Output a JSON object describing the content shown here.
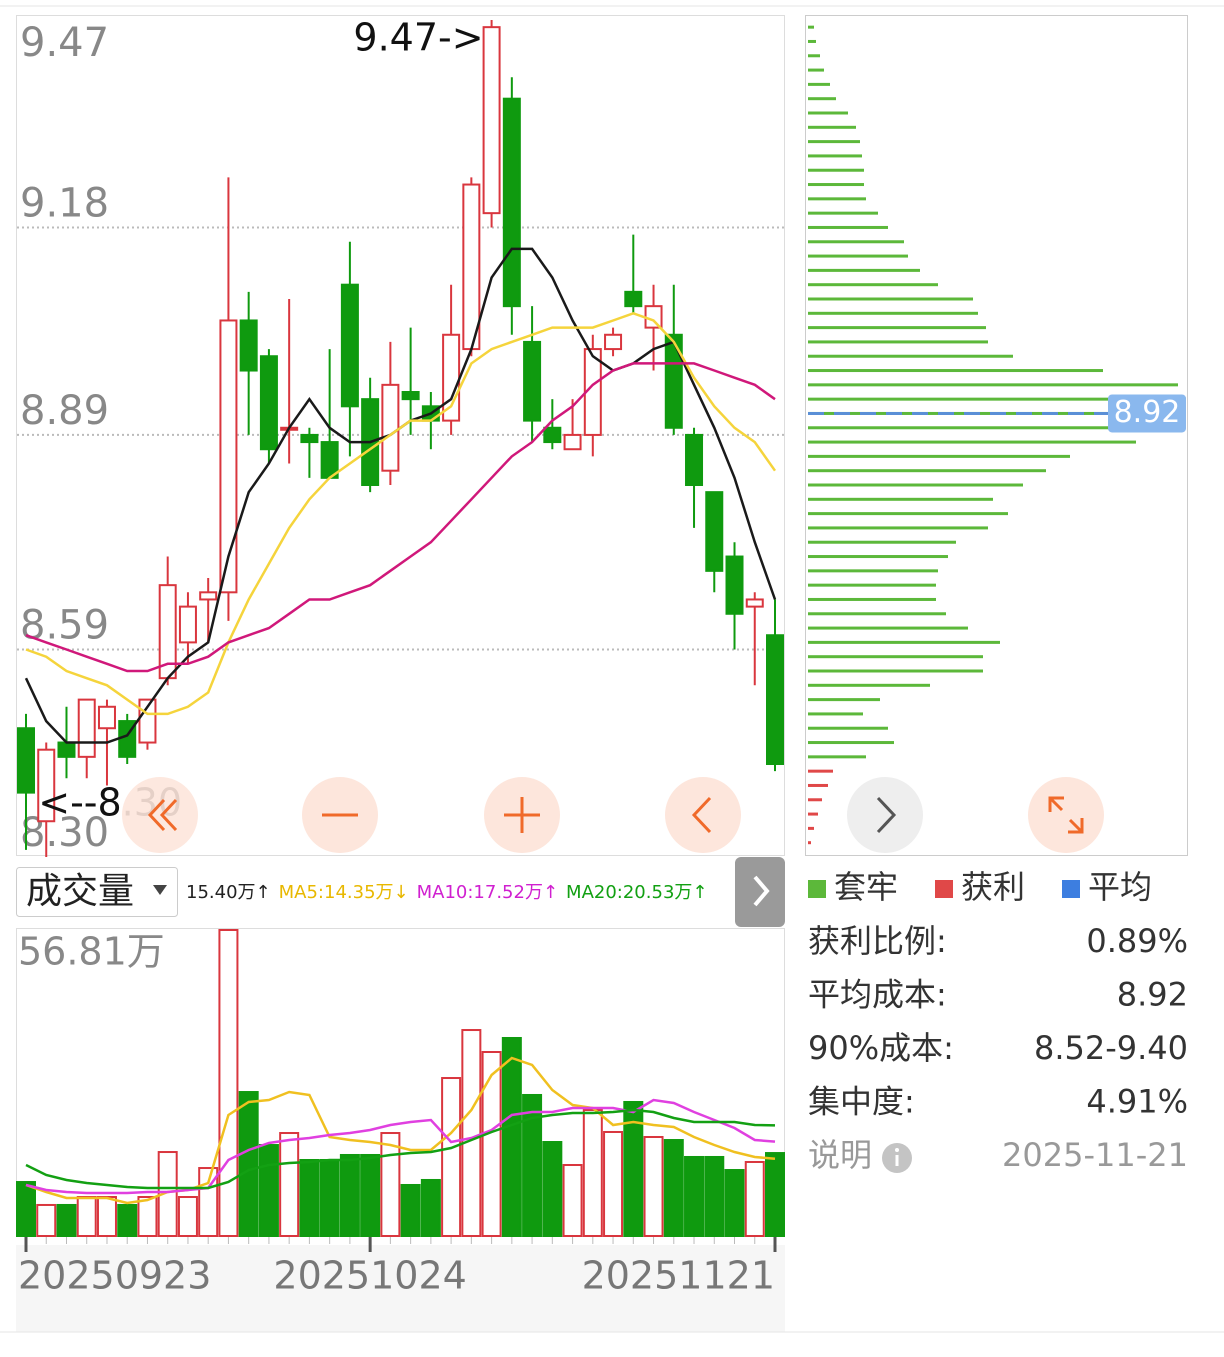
{
  "chart_data": [
    {
      "type": "candlestick",
      "categories": [
        "20250923",
        null,
        null,
        null,
        null,
        null,
        null,
        null,
        null,
        null,
        null,
        null,
        null,
        null,
        null,
        null,
        null,
        "20251024",
        null,
        null,
        null,
        null,
        null,
        null,
        null,
        null,
        null,
        null,
        null,
        null,
        null,
        null,
        null,
        null,
        null,
        null,
        null,
        "20251121"
      ],
      "open": [
        8.48,
        8.35,
        8.46,
        8.44,
        8.48,
        8.49,
        8.46,
        8.55,
        8.6,
        8.66,
        8.67,
        9.05,
        9.0,
        8.9,
        8.89,
        8.88,
        9.1,
        8.94,
        8.84,
        8.95,
        8.93,
        8.91,
        9.01,
        9.2,
        9.36,
        9.02,
        8.9,
        8.87,
        8.89,
        9.01,
        9.09,
        9.04,
        9.03,
        8.89,
        8.81,
        8.72,
        8.65,
        8.61
      ],
      "high": [
        8.5,
        8.46,
        8.51,
        8.52,
        8.52,
        8.5,
        8.52,
        8.72,
        8.67,
        8.69,
        9.25,
        9.09,
        9.01,
        9.08,
        8.9,
        9.01,
        9.16,
        8.97,
        9.02,
        9.04,
        8.95,
        9.1,
        9.25,
        9.47,
        9.39,
        9.07,
        8.94,
        8.94,
        9.03,
        9.04,
        9.17,
        9.1,
        9.1,
        8.9,
        8.81,
        8.74,
        8.67,
        8.66
      ],
      "low": [
        8.31,
        8.3,
        8.41,
        8.41,
        8.4,
        8.43,
        8.45,
        8.54,
        8.57,
        8.6,
        8.63,
        8.89,
        8.85,
        8.85,
        8.83,
        8.83,
        8.86,
        8.81,
        8.82,
        8.89,
        8.87,
        8.89,
        9.0,
        9.18,
        9.03,
        8.88,
        8.87,
        8.87,
        8.86,
        9.0,
        9.06,
        8.98,
        8.89,
        8.76,
        8.67,
        8.59,
        8.54,
        8.42
      ],
      "close": [
        8.39,
        8.45,
        8.44,
        8.52,
        8.51,
        8.44,
        8.52,
        8.68,
        8.65,
        8.67,
        9.05,
        8.98,
        8.87,
        8.9,
        8.88,
        8.83,
        8.93,
        8.82,
        8.96,
        8.94,
        8.91,
        9.03,
        9.24,
        9.46,
        9.07,
        8.91,
        8.88,
        8.89,
        9.01,
        9.03,
        9.07,
        9.07,
        8.9,
        8.82,
        8.7,
        8.64,
        8.66,
        8.43
      ],
      "up_color": "#d9363e",
      "down_color": "#0f9a0f",
      "series": [
        {
          "color": "#1a1a1a",
          "values": [
            8.55,
            8.49,
            8.46,
            8.46,
            8.46,
            8.47,
            8.51,
            8.55,
            8.58,
            8.6,
            8.72,
            8.81,
            8.85,
            8.9,
            8.94,
            8.9,
            8.88,
            8.88,
            8.89,
            8.91,
            8.92,
            8.94,
            9.01,
            9.11,
            9.15,
            9.15,
            9.11,
            9.05,
            9.0,
            8.98,
            8.99,
            9.01,
            9.02,
            8.96,
            8.9,
            8.83,
            8.74,
            8.66
          ]
        },
        {
          "color": "#f5d43c",
          "values": [
            8.59,
            8.58,
            8.56,
            8.55,
            8.54,
            8.52,
            8.5,
            8.5,
            8.51,
            8.53,
            8.6,
            8.66,
            8.71,
            8.76,
            8.8,
            8.83,
            8.85,
            8.87,
            8.89,
            8.91,
            8.91,
            8.93,
            8.99,
            9.01,
            9.02,
            9.03,
            9.04,
            9.04,
            9.04,
            9.05,
            9.06,
            9.05,
            9.02,
            8.97,
            8.93,
            8.9,
            8.88,
            8.84
          ]
        },
        {
          "color": "#d0187a",
          "values": [
            8.61,
            8.6,
            8.59,
            8.58,
            8.57,
            8.56,
            8.56,
            8.57,
            8.57,
            8.58,
            8.6,
            8.61,
            8.62,
            8.64,
            8.66,
            8.66,
            8.67,
            8.68,
            8.7,
            8.72,
            8.74,
            8.77,
            8.8,
            8.83,
            8.86,
            8.88,
            8.91,
            8.93,
            8.96,
            8.98,
            8.99,
            8.99,
            8.99,
            8.99,
            8.98,
            8.97,
            8.96,
            8.94
          ]
        }
      ],
      "ylim": [
        8.3,
        9.47
      ],
      "yticks": [
        9.47,
        9.18,
        8.89,
        8.59,
        {
          "value": 8.3,
          "label": "8.30"
        }
      ],
      "grid": true,
      "annotations": [
        "9.47->",
        "<--8.30"
      ]
    },
    {
      "type": "bar",
      "selector": "成交量",
      "header": [
        {
          "text": "15.40万↑",
          "color": "#222222"
        },
        {
          "text": "MA5:14.35万↓",
          "color": "#e8b800"
        },
        {
          "text": "MA10:17.52万↑",
          "color": "#d020d0"
        },
        {
          "text": "MA20:20.53万↑",
          "color": "#12a012"
        }
      ],
      "values": [
        10.02,
        5.76,
        5.76,
        7.24,
        7.24,
        5.76,
        7.24,
        15.59,
        7.24,
        12.62,
        56.81,
        26.73,
        16.89,
        19.12,
        14.11,
        14.11,
        15.04,
        15.04,
        19.12,
        9.47,
        10.4,
        29.33,
        38.24,
        34.16,
        36.76,
        26.18,
        17.45,
        13.18,
        23.39,
        19.31,
        24.88,
        18.38,
        17.82,
        14.67,
        14.67,
        12.25,
        13.74,
        15.4
      ],
      "series": [
        {
          "color": "#f0c020",
          "values": [
            9.47,
            8.17,
            7.05,
            7.05,
            7.05,
            6.13,
            6.68,
            8.17,
            8.54,
            9.84,
            22.46,
            24.88,
            25.25,
            26.73,
            26.18,
            18.38,
            17.82,
            17.45,
            16.89,
            15.97,
            15.97,
            19.12,
            23.39,
            29.89,
            33.05,
            31.75,
            27.1,
            24.32,
            23.76,
            20.61,
            21.16,
            20.61,
            20.24,
            18.38,
            16.89,
            15.59,
            14.67,
            14.35
          ]
        },
        {
          "color": "#e040e0",
          "values": [
            9.47,
            8.54,
            8.17,
            7.98,
            7.98,
            7.98,
            8.17,
            8.17,
            8.54,
            8.91,
            14.11,
            15.97,
            17.27,
            17.82,
            18.19,
            18.75,
            19.12,
            19.68,
            20.61,
            21.16,
            21.54,
            17.45,
            18.19,
            19.68,
            22.46,
            23.02,
            23.02,
            23.76,
            23.76,
            23.76,
            23.02,
            25.25,
            24.69,
            23.02,
            21.54,
            20.05,
            17.82,
            17.52
          ]
        },
        {
          "color": "#13a013",
          "values": [
            13.18,
            11.32,
            10.4,
            9.84,
            9.47,
            9.1,
            8.91,
            8.91,
            8.91,
            8.91,
            10.02,
            12.25,
            13.18,
            13.55,
            13.74,
            14.11,
            14.11,
            14.48,
            15.04,
            15.41,
            15.59,
            16.34,
            17.82,
            19.31,
            20.61,
            21.91,
            22.46,
            22.84,
            22.84,
            23.02,
            23.39,
            23.02,
            21.91,
            21.16,
            21.16,
            21.16,
            20.61,
            20.53
          ]
        }
      ],
      "ylim": [
        0,
        56.81
      ],
      "yticks": [
        {
          "value": 56.81,
          "label": "56.81万"
        }
      ]
    },
    {
      "type": "hbar",
      "prices": [
        9.46,
        9.44,
        9.42,
        9.4,
        9.38,
        9.36,
        9.34,
        9.32,
        9.3,
        9.28,
        9.26,
        9.24,
        9.22,
        9.2,
        9.18,
        9.16,
        9.14,
        9.12,
        9.1,
        9.08,
        9.06,
        9.04,
        9.02,
        9.0,
        8.98,
        8.96,
        8.94,
        8.92,
        8.9,
        8.88,
        8.86,
        8.84,
        8.82,
        8.8,
        8.78,
        8.76,
        8.74,
        8.72,
        8.7,
        8.68,
        8.66,
        8.64,
        8.62,
        8.6,
        8.58,
        8.56,
        8.54,
        8.52,
        8.5,
        8.48,
        8.46,
        8.44,
        8.42,
        8.4,
        8.38,
        8.36,
        8.34,
        8.32
      ],
      "series": [
        {
          "name": "套牢",
          "color": "#5cb83a",
          "values": [
            6,
            8,
            12,
            16,
            22,
            28,
            40,
            48,
            52,
            54,
            56,
            56,
            58,
            70,
            80,
            96,
            100,
            112,
            130,
            165,
            170,
            178,
            180,
            205,
            295,
            370,
            378,
            352,
            368,
            328,
            262,
            238,
            215,
            185,
            200,
            180,
            148,
            140,
            130,
            128,
            128,
            138,
            160,
            192,
            175,
            175,
            122,
            72,
            55,
            80,
            86,
            58,
            null,
            null,
            null,
            null,
            null,
            null
          ]
        },
        {
          "name": "获利",
          "color": "#e04848",
          "values": [
            null,
            null,
            null,
            null,
            null,
            null,
            null,
            null,
            null,
            null,
            null,
            null,
            null,
            null,
            null,
            null,
            null,
            null,
            null,
            null,
            null,
            null,
            null,
            null,
            null,
            null,
            null,
            null,
            null,
            null,
            null,
            null,
            null,
            null,
            null,
            null,
            null,
            null,
            null,
            null,
            null,
            null,
            null,
            null,
            null,
            null,
            null,
            null,
            null,
            null,
            null,
            null,
            25,
            20,
            14,
            10,
            6,
            3
          ]
        }
      ],
      "average": {
        "name": "平均",
        "color": "#3d7ee0",
        "value": 8.92
      },
      "xlim": [
        0,
        380
      ],
      "ylim": [
        8.3,
        9.47
      ]
    }
  ],
  "info": {
    "rows": [
      [
        "获利比例:",
        "0.89%"
      ],
      [
        "平均成本:",
        "8.92"
      ],
      [
        "90%成本:",
        "8.52-9.40"
      ],
      [
        "集中度:",
        "4.91%"
      ]
    ],
    "note": {
      "label": "说明",
      "date": "2025-11-21"
    }
  }
}
